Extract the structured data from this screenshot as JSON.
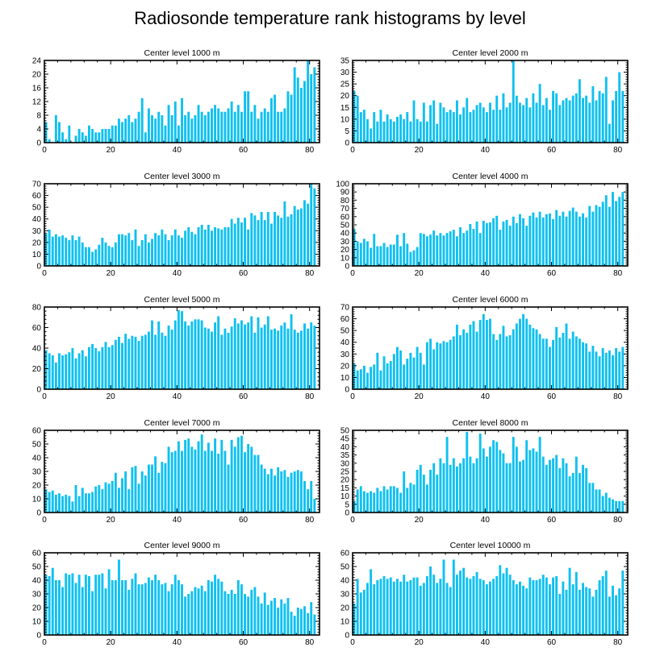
{
  "figure_title": "Radiosonde temperature rank histograms by level",
  "colors": {
    "bar": "#10c0f0",
    "axis": "#000000",
    "background": "#ffffff"
  },
  "chart_data": [
    {
      "type": "bar",
      "title": "Center level 1000 m",
      "xlabel": "",
      "ylabel": "",
      "xlim": [
        0,
        83
      ],
      "ylim": [
        0,
        24
      ],
      "xticks": [
        0,
        20,
        40,
        60,
        80
      ],
      "yticks": [
        0,
        4,
        8,
        12,
        16,
        20,
        24
      ],
      "categories_start": 0,
      "values": [
        6,
        1,
        0,
        8,
        6,
        3,
        1,
        5,
        0,
        2,
        4,
        3,
        2,
        5,
        4,
        3,
        3,
        4,
        4,
        4,
        5,
        5,
        7,
        6,
        7,
        8,
        6,
        7,
        9,
        13,
        3,
        10,
        8,
        7,
        9,
        8,
        5,
        11,
        8,
        12,
        5,
        13,
        8,
        9,
        7,
        8,
        11,
        9,
        8,
        9,
        10,
        11,
        10,
        9,
        9,
        10,
        12,
        9,
        11,
        9,
        15,
        15,
        9,
        11,
        7,
        9,
        10,
        9,
        13,
        14,
        9,
        9,
        10,
        15,
        14,
        22,
        19,
        16,
        18,
        24,
        20,
        22
      ]
    },
    {
      "type": "bar",
      "title": "Center level 2000 m",
      "xlabel": "",
      "ylabel": "",
      "xlim": [
        0,
        83
      ],
      "ylim": [
        0,
        35
      ],
      "xticks": [
        0,
        20,
        40,
        60,
        80
      ],
      "yticks": [
        0,
        5,
        10,
        15,
        20,
        25,
        30,
        35
      ],
      "categories_start": 0,
      "values": [
        22,
        20,
        13,
        14,
        10,
        6,
        13,
        9,
        14,
        9,
        12,
        10,
        9,
        11,
        12,
        10,
        13,
        9,
        18,
        10,
        9,
        17,
        9,
        16,
        18,
        8,
        17,
        15,
        13,
        14,
        13,
        18,
        12,
        15,
        19,
        13,
        14,
        16,
        17,
        15,
        13,
        17,
        14,
        20,
        14,
        21,
        15,
        17,
        35,
        20,
        17,
        16,
        19,
        15,
        21,
        17,
        25,
        16,
        19,
        14,
        22,
        21,
        16,
        18,
        19,
        18,
        20,
        21,
        27,
        19,
        20,
        17,
        24,
        18,
        22,
        21,
        28,
        8,
        18,
        22,
        30,
        22
      ]
    },
    {
      "type": "bar",
      "title": "Center level 3000 m",
      "xlabel": "",
      "ylabel": "",
      "xlim": [
        0,
        83
      ],
      "ylim": [
        0,
        70
      ],
      "xticks": [
        0,
        20,
        40,
        60,
        80
      ],
      "yticks": [
        0,
        10,
        20,
        30,
        40,
        50,
        60,
        70
      ],
      "categories_start": 0,
      "values": [
        28,
        31,
        25,
        27,
        25,
        26,
        24,
        22,
        26,
        22,
        25,
        20,
        16,
        16,
        12,
        14,
        18,
        24,
        20,
        17,
        16,
        20,
        27,
        27,
        26,
        28,
        22,
        31,
        17,
        22,
        27,
        20,
        23,
        28,
        26,
        31,
        27,
        22,
        26,
        31,
        26,
        24,
        30,
        33,
        29,
        27,
        33,
        35,
        31,
        35,
        30,
        33,
        32,
        31,
        33,
        33,
        40,
        36,
        41,
        37,
        41,
        31,
        45,
        43,
        39,
        46,
        39,
        46,
        36,
        46,
        43,
        41,
        55,
        42,
        44,
        51,
        48,
        49,
        56,
        53,
        70,
        66
      ]
    },
    {
      "type": "bar",
      "title": "Center level 4000 m",
      "xlabel": "",
      "ylabel": "",
      "xlim": [
        0,
        83
      ],
      "ylim": [
        0,
        100
      ],
      "xticks": [
        0,
        20,
        40,
        60,
        80
      ],
      "yticks": [
        0,
        10,
        20,
        30,
        40,
        50,
        60,
        70,
        80,
        90,
        100
      ],
      "categories_start": 0,
      "values": [
        45,
        30,
        28,
        33,
        30,
        22,
        39,
        24,
        24,
        28,
        23,
        26,
        26,
        38,
        24,
        40,
        27,
        17,
        19,
        23,
        40,
        39,
        36,
        38,
        43,
        37,
        40,
        37,
        40,
        42,
        44,
        36,
        47,
        40,
        43,
        51,
        45,
        54,
        40,
        55,
        52,
        53,
        58,
        61,
        44,
        54,
        56,
        49,
        60,
        52,
        63,
        58,
        49,
        61,
        65,
        59,
        66,
        59,
        63,
        64,
        57,
        68,
        61,
        66,
        60,
        67,
        71,
        66,
        60,
        64,
        59,
        73,
        66,
        74,
        72,
        78,
        86,
        72,
        90,
        79,
        84,
        90
      ]
    },
    {
      "type": "bar",
      "title": "Center level 5000 m",
      "xlabel": "",
      "ylabel": "",
      "xlim": [
        0,
        83
      ],
      "ylim": [
        0,
        80
      ],
      "xticks": [
        0,
        20,
        40,
        60,
        80
      ],
      "yticks": [
        0,
        20,
        40,
        60,
        80
      ],
      "categories_start": 0,
      "values": [
        38,
        35,
        33,
        26,
        35,
        33,
        34,
        36,
        40,
        30,
        35,
        38,
        32,
        41,
        44,
        40,
        37,
        41,
        46,
        41,
        43,
        48,
        51,
        45,
        54,
        49,
        52,
        51,
        47,
        52,
        53,
        56,
        67,
        53,
        66,
        55,
        52,
        62,
        58,
        67,
        77,
        76,
        66,
        62,
        66,
        68,
        68,
        67,
        60,
        59,
        56,
        65,
        71,
        53,
        59,
        55,
        61,
        69,
        64,
        67,
        63,
        65,
        71,
        55,
        70,
        60,
        63,
        71,
        58,
        59,
        57,
        62,
        65,
        59,
        73,
        58,
        55,
        57,
        64,
        59,
        65,
        62
      ]
    },
    {
      "type": "bar",
      "title": "Center level 6000 m",
      "xlabel": "",
      "ylabel": "",
      "xlim": [
        0,
        83
      ],
      "ylim": [
        0,
        70
      ],
      "xticks": [
        0,
        20,
        40,
        60,
        80
      ],
      "yticks": [
        0,
        10,
        20,
        30,
        40,
        50,
        60,
        70
      ],
      "categories_start": 0,
      "values": [
        22,
        16,
        17,
        20,
        14,
        19,
        21,
        31,
        16,
        28,
        22,
        24,
        30,
        36,
        33,
        21,
        26,
        31,
        27,
        36,
        31,
        21,
        40,
        43,
        34,
        40,
        39,
        41,
        40,
        42,
        45,
        55,
        46,
        51,
        48,
        55,
        58,
        49,
        59,
        64,
        59,
        60,
        47,
        42,
        47,
        54,
        45,
        46,
        51,
        56,
        60,
        64,
        60,
        55,
        52,
        51,
        47,
        43,
        43,
        36,
        42,
        53,
        44,
        48,
        56,
        43,
        49,
        45,
        43,
        40,
        39,
        32,
        37,
        32,
        28,
        35,
        31,
        33,
        29,
        35,
        32,
        36
      ]
    },
    {
      "type": "bar",
      "title": "Center level 7000 m",
      "xlabel": "",
      "ylabel": "",
      "xlim": [
        0,
        83
      ],
      "ylim": [
        0,
        60
      ],
      "xticks": [
        0,
        20,
        40,
        60,
        80
      ],
      "yticks": [
        0,
        10,
        20,
        30,
        40,
        50,
        60
      ],
      "categories_start": 0,
      "values": [
        17,
        15,
        16,
        13,
        14,
        12,
        13,
        12,
        8,
        20,
        12,
        18,
        14,
        14,
        15,
        19,
        20,
        17,
        22,
        21,
        23,
        29,
        18,
        25,
        30,
        17,
        33,
        34,
        21,
        30,
        27,
        35,
        35,
        41,
        29,
        37,
        36,
        48,
        44,
        45,
        52,
        45,
        53,
        54,
        48,
        46,
        52,
        57,
        45,
        51,
        45,
        54,
        43,
        53,
        45,
        35,
        53,
        48,
        55,
        56,
        44,
        50,
        48,
        42,
        42,
        35,
        32,
        28,
        32,
        27,
        33,
        30,
        31,
        26,
        29,
        30,
        31,
        30,
        23,
        17,
        23,
        10
      ]
    },
    {
      "type": "bar",
      "title": "Center level 8000 m",
      "xlabel": "",
      "ylabel": "",
      "xlim": [
        0,
        83
      ],
      "ylim": [
        0,
        50
      ],
      "xticks": [
        0,
        20,
        40,
        60,
        80
      ],
      "yticks": [
        0,
        5,
        10,
        15,
        20,
        25,
        30,
        35,
        40,
        45,
        50
      ],
      "categories_start": 0,
      "values": [
        7,
        14,
        16,
        13,
        12,
        13,
        12,
        15,
        13,
        16,
        14,
        16,
        16,
        15,
        12,
        25,
        15,
        18,
        17,
        26,
        29,
        23,
        17,
        26,
        30,
        23,
        33,
        30,
        46,
        29,
        33,
        28,
        30,
        33,
        49,
        34,
        30,
        33,
        48,
        39,
        34,
        40,
        44,
        43,
        38,
        36,
        30,
        30,
        46,
        40,
        31,
        32,
        44,
        38,
        39,
        37,
        46,
        34,
        29,
        32,
        33,
        35,
        27,
        33,
        30,
        22,
        24,
        34,
        24,
        29,
        27,
        18,
        18,
        14,
        14,
        10,
        12,
        9,
        8,
        7,
        7,
        7
      ]
    },
    {
      "type": "bar",
      "title": "Center level 9000 m",
      "xlabel": "",
      "ylabel": "",
      "xlim": [
        0,
        83
      ],
      "ylim": [
        0,
        60
      ],
      "xticks": [
        0,
        20,
        40,
        60,
        80
      ],
      "yticks": [
        0,
        10,
        20,
        30,
        40,
        50,
        60
      ],
      "categories_start": 0,
      "values": [
        44,
        43,
        49,
        40,
        40,
        35,
        45,
        44,
        45,
        38,
        44,
        35,
        44,
        43,
        32,
        44,
        44,
        45,
        34,
        48,
        40,
        40,
        55,
        40,
        40,
        33,
        41,
        45,
        37,
        37,
        38,
        42,
        40,
        44,
        40,
        37,
        38,
        32,
        37,
        44,
        40,
        37,
        28,
        30,
        32,
        35,
        34,
        36,
        32,
        40,
        39,
        44,
        41,
        39,
        32,
        30,
        33,
        30,
        40,
        37,
        30,
        28,
        33,
        35,
        28,
        23,
        31,
        22,
        25,
        27,
        20,
        26,
        23,
        27,
        17,
        14,
        20,
        19,
        21,
        16,
        24,
        15
      ]
    },
    {
      "type": "bar",
      "title": "Center level 10000 m",
      "xlabel": "",
      "ylabel": "",
      "xlim": [
        0,
        83
      ],
      "ylim": [
        0,
        60
      ],
      "xticks": [
        0,
        20,
        40,
        60,
        80
      ],
      "yticks": [
        0,
        10,
        20,
        30,
        40,
        50,
        60
      ],
      "categories_start": 0,
      "values": [
        23,
        41,
        31,
        33,
        38,
        48,
        37,
        40,
        41,
        43,
        41,
        42,
        39,
        41,
        39,
        44,
        39,
        40,
        42,
        42,
        36,
        38,
        43,
        50,
        44,
        38,
        41,
        55,
        38,
        35,
        55,
        44,
        47,
        49,
        42,
        41,
        43,
        46,
        41,
        40,
        37,
        39,
        41,
        43,
        51,
        45,
        49,
        44,
        40,
        37,
        39,
        36,
        34,
        42,
        40,
        40,
        41,
        44,
        42,
        37,
        42,
        43,
        30,
        39,
        33,
        49,
        37,
        46,
        33,
        38,
        35,
        34,
        28,
        33,
        40,
        43,
        47,
        28,
        36,
        29,
        34,
        47
      ]
    }
  ]
}
